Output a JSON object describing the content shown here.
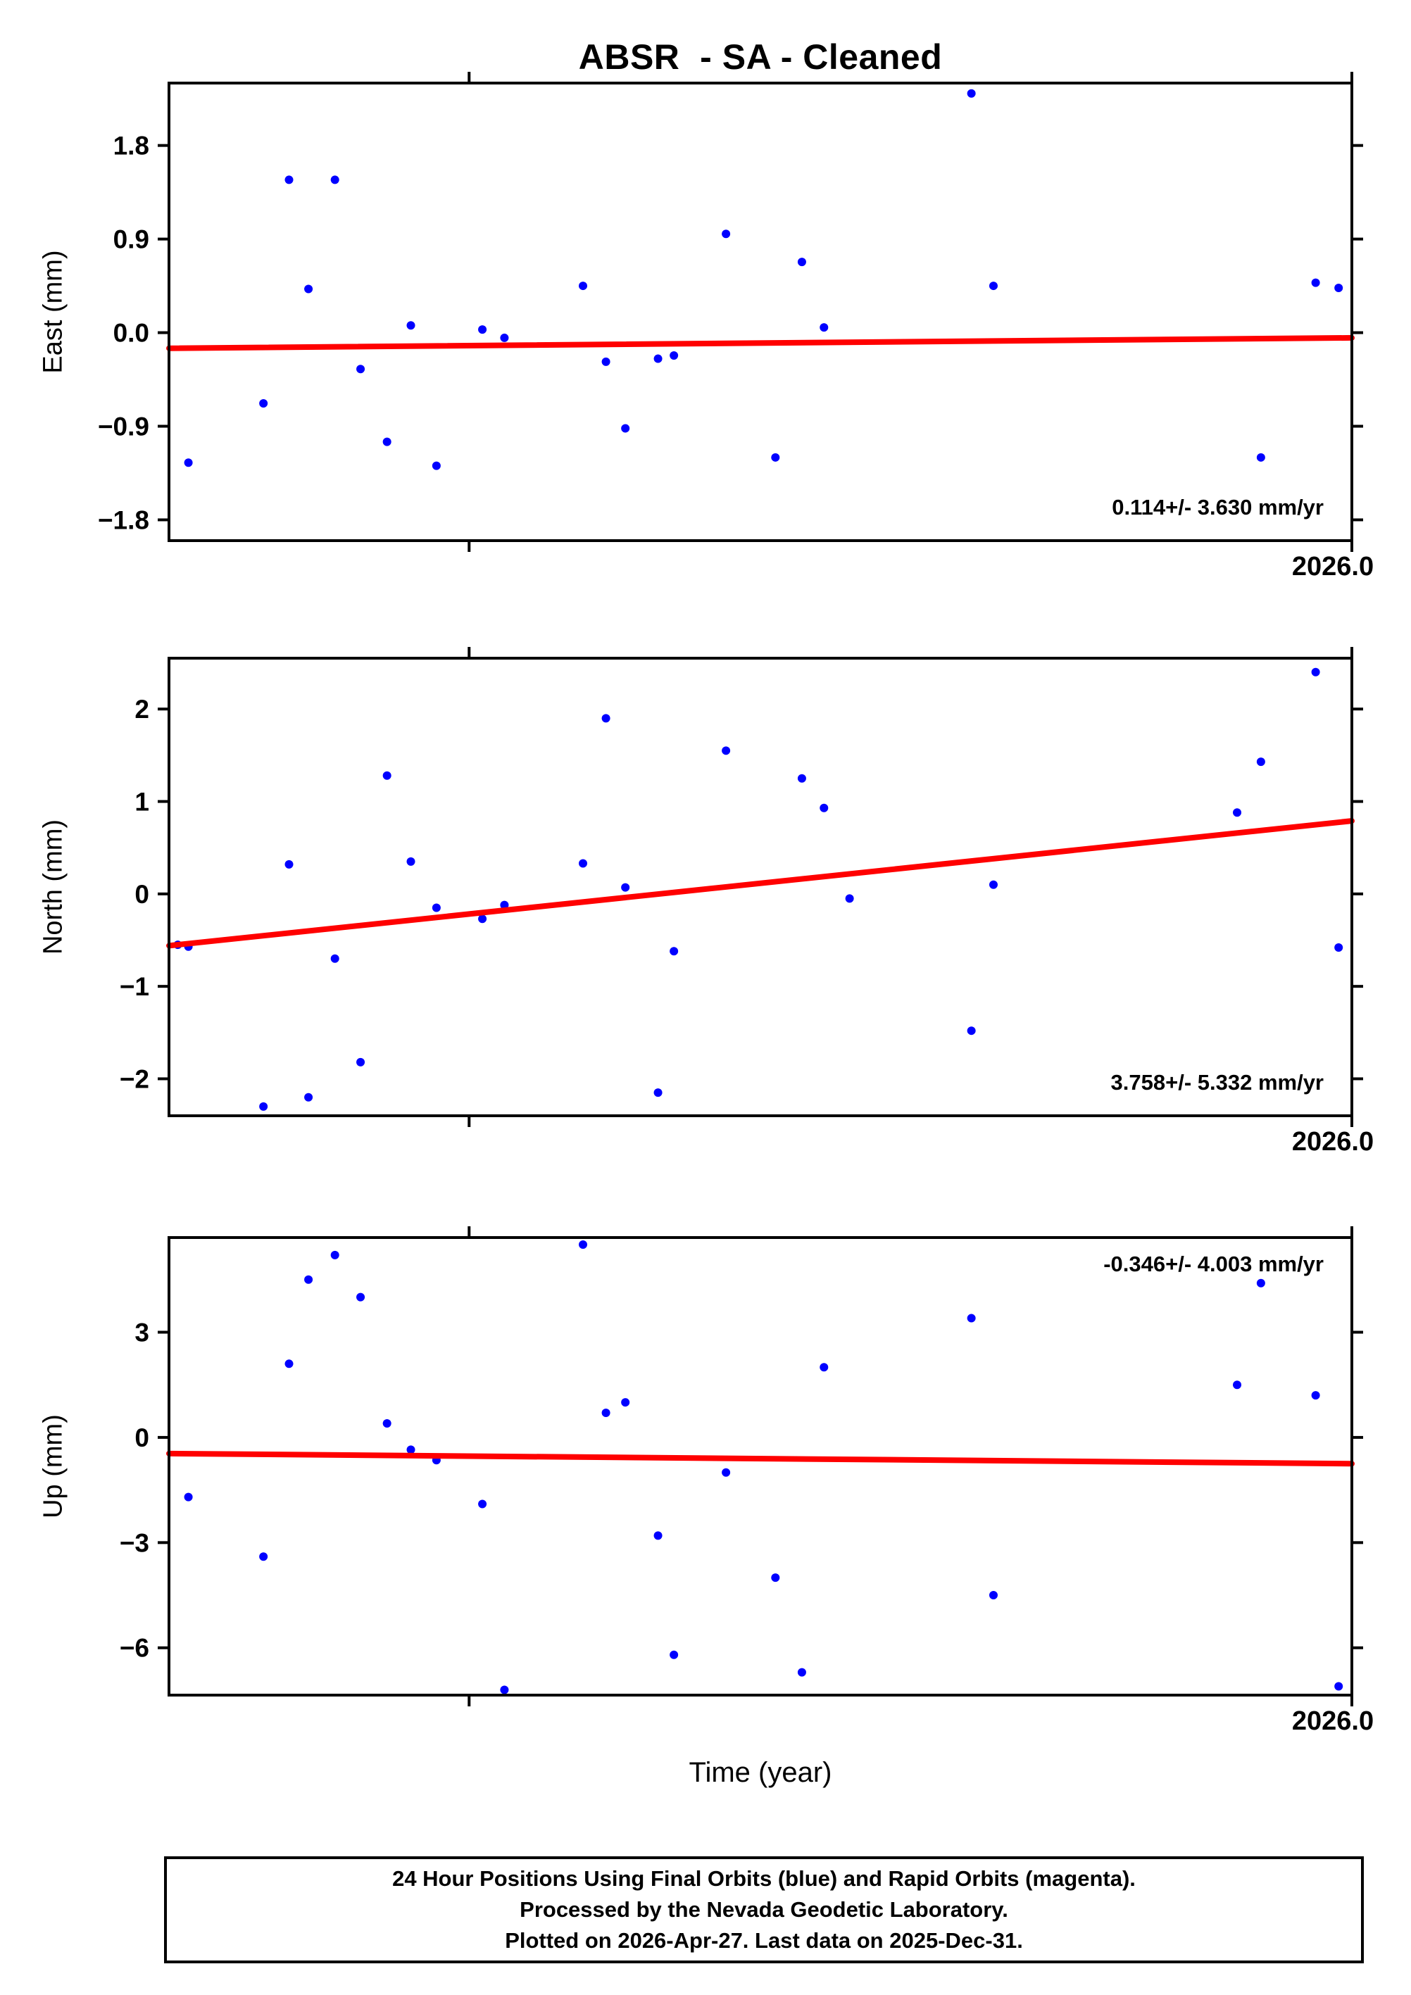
{
  "title": "ABSR  - SA - Cleaned",
  "xaxis": {
    "label": "Time (year)",
    "tick_label": "2026.0",
    "xlim": [
      2024.66,
      2026.0
    ],
    "ticks": [
      2025.0,
      2026.0
    ]
  },
  "colors": {
    "points_final": "#0000ff",
    "points_rapid": "#ff00ff",
    "trend": "#ff0000",
    "axis": "#000000"
  },
  "footer": {
    "line1": "24 Hour Positions Using Final Orbits (blue) and Rapid Orbits (magenta).",
    "line2": "Processed by the Nevada Geodetic Laboratory.",
    "line3": "Plotted on 2026-Apr-27. Last data on 2025-Dec-31."
  },
  "chart_data": [
    {
      "type": "scatter",
      "name": "east",
      "ylabel": "East (mm)",
      "ylim": [
        -2.0,
        2.4
      ],
      "yticks": [
        1.8,
        0.9,
        0.0,
        -0.9,
        -1.8
      ],
      "ytick_labels": [
        "1.8",
        "0.9",
        "0.0",
        "−0.9",
        "−1.8"
      ],
      "annotation": "0.114+/- 3.630 mm/yr",
      "annotation_pos": "bottom-right",
      "trend_mm_per_yr": 0.114,
      "trend_line": {
        "x": [
          2024.66,
          2026.0
        ],
        "y": [
          -0.15,
          -0.05
        ]
      },
      "grid": false,
      "points": [
        [
          2024.682,
          -1.25
        ],
        [
          2024.767,
          -0.68
        ],
        [
          2024.796,
          1.47
        ],
        [
          2024.818,
          0.42
        ],
        [
          2024.848,
          1.47
        ],
        [
          2024.877,
          -0.35
        ],
        [
          2024.907,
          -1.05
        ],
        [
          2024.934,
          0.07
        ],
        [
          2024.963,
          -1.28
        ],
        [
          2025.015,
          0.03
        ],
        [
          2025.04,
          -0.05
        ],
        [
          2025.129,
          0.45
        ],
        [
          2025.155,
          -0.28
        ],
        [
          2025.177,
          -0.92
        ],
        [
          2025.214,
          -0.25
        ],
        [
          2025.232,
          -0.22
        ],
        [
          2025.291,
          0.95
        ],
        [
          2025.347,
          -1.2
        ],
        [
          2025.377,
          0.68
        ],
        [
          2025.402,
          0.05
        ],
        [
          2025.569,
          2.3
        ],
        [
          2025.594,
          0.45
        ],
        [
          2025.897,
          -1.2
        ],
        [
          2025.959,
          0.48
        ],
        [
          2025.985,
          0.43
        ]
      ]
    },
    {
      "type": "scatter",
      "name": "north",
      "ylabel": "North (mm)",
      "ylim": [
        -2.4,
        2.55
      ],
      "yticks": [
        2,
        1,
        0,
        -1,
        -2
      ],
      "ytick_labels": [
        "2",
        "1",
        "0",
        "−1",
        "−2"
      ],
      "annotation": "3.758+/- 5.332 mm/yr",
      "annotation_pos": "bottom-right",
      "trend_mm_per_yr": 3.758,
      "trend_line": {
        "x": [
          2024.66,
          2026.0
        ],
        "y": [
          -0.56,
          0.79
        ]
      },
      "grid": false,
      "points": [
        [
          2024.67,
          -0.55
        ],
        [
          2024.682,
          -0.57
        ],
        [
          2024.767,
          -2.3
        ],
        [
          2024.796,
          0.32
        ],
        [
          2024.818,
          -2.2
        ],
        [
          2024.848,
          -0.7
        ],
        [
          2024.877,
          -1.82
        ],
        [
          2024.907,
          1.28
        ],
        [
          2024.934,
          0.35
        ],
        [
          2024.963,
          -0.15
        ],
        [
          2025.015,
          -0.27
        ],
        [
          2025.04,
          -0.12
        ],
        [
          2025.129,
          0.33
        ],
        [
          2025.155,
          1.9
        ],
        [
          2025.177,
          0.07
        ],
        [
          2025.214,
          -2.15
        ],
        [
          2025.232,
          -0.62
        ],
        [
          2025.291,
          1.55
        ],
        [
          2025.377,
          1.25
        ],
        [
          2025.402,
          0.93
        ],
        [
          2025.431,
          -0.05
        ],
        [
          2025.569,
          -1.48
        ],
        [
          2025.594,
          0.1
        ],
        [
          2025.87,
          0.88
        ],
        [
          2025.897,
          1.43
        ],
        [
          2025.959,
          2.4
        ],
        [
          2025.985,
          -0.58
        ]
      ]
    },
    {
      "type": "scatter",
      "name": "up",
      "ylabel": "Up (mm)",
      "ylim": [
        -7.35,
        5.7
      ],
      "yticks": [
        3,
        0,
        -3,
        -6
      ],
      "ytick_labels": [
        "3",
        "0",
        "−3",
        "−6"
      ],
      "annotation": "-0.346+/- 4.003 mm/yr",
      "annotation_pos": "top-right",
      "trend_mm_per_yr": -0.346,
      "trend_line": {
        "x": [
          2024.66,
          2026.0
        ],
        "y": [
          -0.46,
          -0.75
        ]
      },
      "grid": false,
      "points": [
        [
          2024.682,
          -1.7
        ],
        [
          2024.767,
          -3.4
        ],
        [
          2024.796,
          2.1
        ],
        [
          2024.818,
          4.5
        ],
        [
          2024.848,
          5.2
        ],
        [
          2024.877,
          4.0
        ],
        [
          2024.907,
          0.4
        ],
        [
          2024.934,
          -0.35
        ],
        [
          2024.963,
          -0.65
        ],
        [
          2025.015,
          -1.9
        ],
        [
          2025.04,
          -7.2
        ],
        [
          2025.129,
          5.5
        ],
        [
          2025.155,
          0.7
        ],
        [
          2025.177,
          1.0
        ],
        [
          2025.214,
          -2.8
        ],
        [
          2025.232,
          -6.2
        ],
        [
          2025.291,
          -1.0
        ],
        [
          2025.347,
          -4.0
        ],
        [
          2025.377,
          -6.7
        ],
        [
          2025.402,
          2.0
        ],
        [
          2025.569,
          3.4
        ],
        [
          2025.594,
          -4.5
        ],
        [
          2025.87,
          1.5
        ],
        [
          2025.897,
          4.4
        ],
        [
          2025.959,
          1.2
        ],
        [
          2025.985,
          -7.1
        ]
      ]
    }
  ]
}
